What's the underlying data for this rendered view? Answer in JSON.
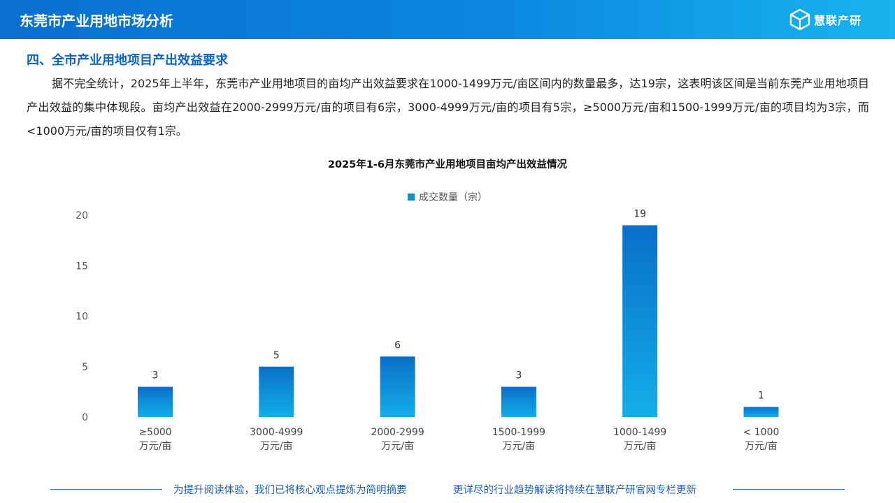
{
  "header": {
    "title": "东莞市产业用地市场分析",
    "logo_text": "慧联产研",
    "brand_color": "#0b86e0"
  },
  "section": {
    "title": "四、全市产业用地项目产出效益要求",
    "paragraph": "据不完全统计，2025年上半年，东莞市产业用地项目的亩均产出效益要求在1000-1499万元/亩区间内的数量最多，达19宗，这表明该区间是当前东莞产业用地项目产出效益的集中体现段。亩均产出效益在2000-2999万元/亩的项目有6宗，3000-4999万元/亩的项目有5宗，≥5000万元/亩和1500-1999万元/亩的项目均为3宗，而<1000万元/亩的项目仅有1宗。"
  },
  "chart_data": {
    "type": "bar",
    "title": "2025年1-6月东莞市产业用地项目亩均产出效益情况",
    "legend": "成交数量（宗）",
    "categories": [
      [
        "≥5000",
        "万元/亩"
      ],
      [
        "3000-4999",
        "万元/亩"
      ],
      [
        "2000-2999",
        "万元/亩"
      ],
      [
        "1500-1999",
        "万元/亩"
      ],
      [
        "1000-1499",
        "万元/亩"
      ],
      [
        "< 1000",
        "万元/亩"
      ]
    ],
    "series": [
      {
        "name": "成交数量（宗）",
        "values": [
          3,
          5,
          6,
          3,
          19,
          1
        ]
      }
    ],
    "ylim": [
      0,
      20
    ],
    "yticks": [
      0,
      5,
      10,
      15,
      20
    ],
    "grid": false,
    "bar_color_top": "#0a6fc9",
    "bar_color_bottom": "#13aee9"
  },
  "footer": {
    "left": "为提升阅读体验，我们已将核心观点提炼为简明摘要",
    "right": "更详尽的行业趋势解读将持续在慧联产研官网专栏更新"
  }
}
